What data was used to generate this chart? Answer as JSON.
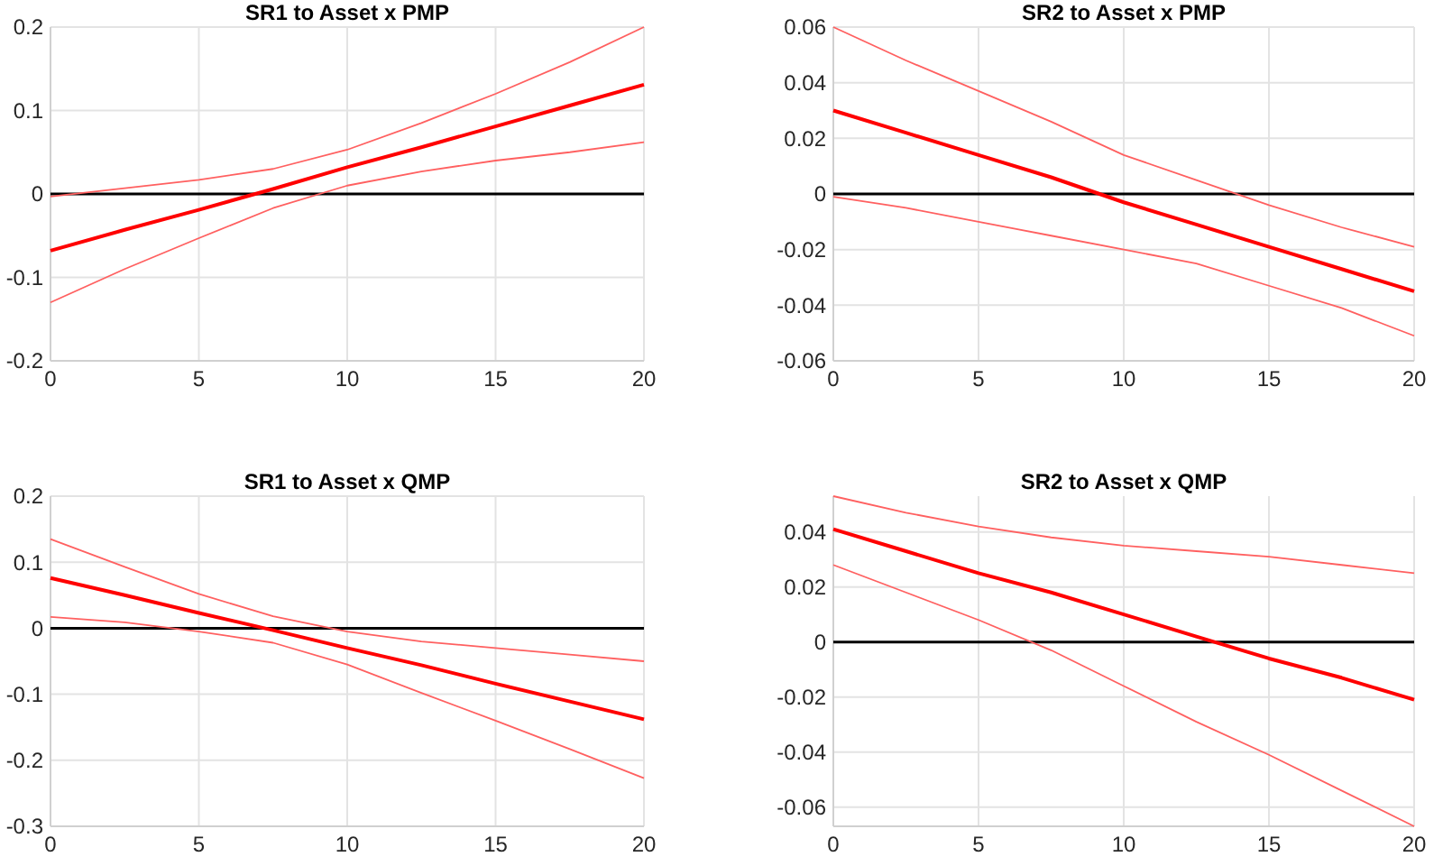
{
  "chart_data": [
    {
      "type": "line",
      "title": "SR1 to Asset x PMP",
      "x": [
        0,
        2.5,
        5,
        7.5,
        10,
        12.5,
        15,
        17.5,
        20
      ],
      "xlim": [
        0,
        20
      ],
      "xticks": [
        0,
        5,
        10,
        15,
        20
      ],
      "ylim": [
        -0.2,
        0.2
      ],
      "yticks": [
        -0.2,
        -0.1,
        0,
        0.1,
        0.2
      ],
      "grid": true,
      "series": [
        {
          "color": "#ff0000",
          "values": [
            -0.068,
            -0.043,
            -0.019,
            0.006,
            0.032,
            0.056,
            0.081,
            0.106,
            0.131
          ]
        },
        {
          "color": "#ff6060",
          "values": [
            -0.13,
            -0.09,
            -0.053,
            -0.017,
            0.01,
            0.027,
            0.04,
            0.05,
            0.062
          ]
        },
        {
          "color": "#ff6060",
          "values": [
            -0.003,
            0.007,
            0.017,
            0.03,
            0.053,
            0.085,
            0.12,
            0.158,
            0.2
          ]
        }
      ],
      "ref_lines": [
        {
          "axis": "y",
          "value": 0,
          "color": "#000000"
        }
      ]
    },
    {
      "type": "line",
      "title": "SR2 to Asset x PMP",
      "x": [
        0,
        2.5,
        5,
        7.5,
        10,
        12.5,
        15,
        17.5,
        20
      ],
      "xlim": [
        0,
        20
      ],
      "xticks": [
        0,
        5,
        10,
        15,
        20
      ],
      "ylim": [
        -0.06,
        0.06
      ],
      "yticks": [
        -0.06,
        -0.04,
        -0.02,
        0,
        0.02,
        0.04,
        0.06
      ],
      "grid": true,
      "series": [
        {
          "color": "#ff0000",
          "values": [
            0.03,
            0.022,
            0.014,
            0.006,
            -0.003,
            -0.011,
            -0.019,
            -0.027,
            -0.035
          ]
        },
        {
          "color": "#ff6060",
          "values": [
            -0.001,
            -0.005,
            -0.01,
            -0.015,
            -0.02,
            -0.025,
            -0.033,
            -0.041,
            -0.051
          ]
        },
        {
          "color": "#ff6060",
          "values": [
            0.06,
            0.048,
            0.037,
            0.026,
            0.014,
            0.005,
            -0.004,
            -0.012,
            -0.019
          ]
        }
      ],
      "ref_lines": [
        {
          "axis": "y",
          "value": 0,
          "color": "#000000"
        }
      ]
    },
    {
      "type": "line",
      "title": "SR1 to Asset x QMP",
      "x": [
        0,
        2.5,
        5,
        7.5,
        10,
        12.5,
        15,
        17.5,
        20
      ],
      "xlim": [
        0,
        20
      ],
      "xticks": [
        0,
        5,
        10,
        15,
        20
      ],
      "ylim": [
        -0.3,
        0.2
      ],
      "yticks": [
        -0.3,
        -0.2,
        -0.1,
        0,
        0.1,
        0.2
      ],
      "grid": true,
      "series": [
        {
          "color": "#ff0000",
          "values": [
            0.076,
            0.05,
            0.023,
            -0.003,
            -0.03,
            -0.056,
            -0.084,
            -0.111,
            -0.138
          ]
        },
        {
          "color": "#ff6060",
          "values": [
            0.017,
            0.009,
            -0.005,
            -0.022,
            -0.055,
            -0.098,
            -0.14,
            -0.183,
            -0.227
          ]
        },
        {
          "color": "#ff6060",
          "values": [
            0.135,
            0.093,
            0.052,
            0.018,
            -0.005,
            -0.02,
            -0.03,
            -0.04,
            -0.05
          ]
        }
      ],
      "ref_lines": [
        {
          "axis": "y",
          "value": 0,
          "color": "#000000"
        }
      ]
    },
    {
      "type": "line",
      "title": "SR2 to Asset x QMP",
      "x": [
        0,
        2.5,
        5,
        7.5,
        10,
        12.5,
        15,
        17.5,
        20
      ],
      "xlim": [
        0,
        20
      ],
      "xticks": [
        0,
        5,
        10,
        15,
        20
      ],
      "ylim": [
        -0.067,
        0.053
      ],
      "yticks": [
        -0.06,
        -0.04,
        -0.02,
        0,
        0.02,
        0.04
      ],
      "grid": true,
      "series": [
        {
          "color": "#ff0000",
          "values": [
            0.041,
            0.033,
            0.025,
            0.018,
            0.01,
            0.002,
            -0.006,
            -0.013,
            -0.021
          ]
        },
        {
          "color": "#ff6060",
          "values": [
            0.028,
            0.018,
            0.008,
            -0.003,
            -0.016,
            -0.029,
            -0.041,
            -0.054,
            -0.067
          ]
        },
        {
          "color": "#ff6060",
          "values": [
            0.053,
            0.047,
            0.042,
            0.038,
            0.035,
            0.033,
            0.031,
            0.028,
            0.025
          ]
        }
      ],
      "ref_lines": [
        {
          "axis": "y",
          "value": 0,
          "color": "#000000"
        }
      ]
    }
  ]
}
